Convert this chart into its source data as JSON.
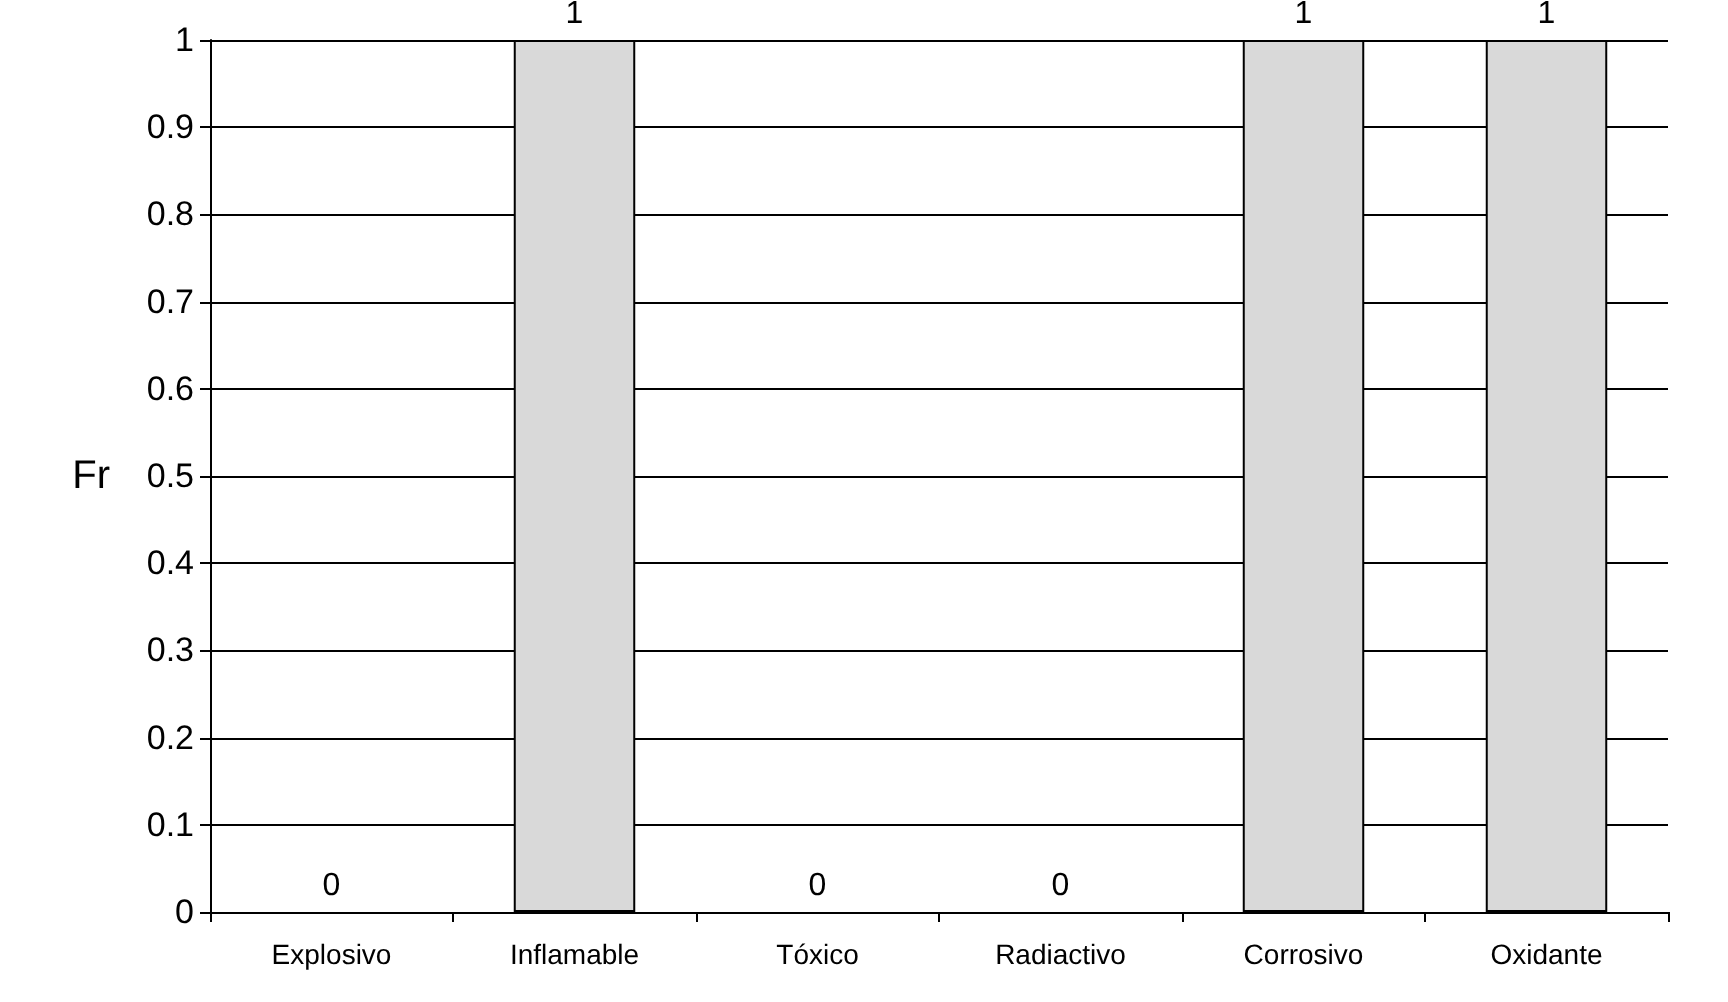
{
  "chart_data": {
    "type": "bar",
    "categories": [
      "Explosivo",
      "Inflamable",
      "Tóxico",
      "Radiactivo",
      "Corrosivo",
      "Oxidante"
    ],
    "values": [
      0,
      1,
      0,
      0,
      1,
      1
    ],
    "color": "#d9d9d9",
    "ylabel": "Fr",
    "ylim": [
      0,
      1
    ],
    "yticks": [
      0,
      0.1,
      0.2,
      0.3,
      0.4,
      0.5,
      0.6,
      0.7,
      0.8,
      0.9,
      1
    ],
    "grid": "y",
    "data_labels": true
  }
}
